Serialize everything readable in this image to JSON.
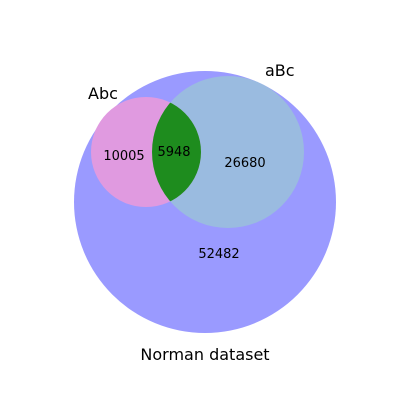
{
  "diagram": {
    "type": "venn",
    "sets": [
      {
        "key": "A",
        "label": "Abc",
        "color": "#e09ae0"
      },
      {
        "key": "B",
        "label": "aBc",
        "color": "#9abbe0"
      },
      {
        "key": "C",
        "label": "Norman dataset",
        "color": "#9a9aff"
      }
    ],
    "regions": [
      {
        "key": "A_only",
        "value": "10005"
      },
      {
        "key": "AB",
        "value": "5948",
        "color": "#1e8c1e"
      },
      {
        "key": "B_only",
        "value": "26680"
      },
      {
        "key": "C_only",
        "value": "52482"
      }
    ]
  }
}
